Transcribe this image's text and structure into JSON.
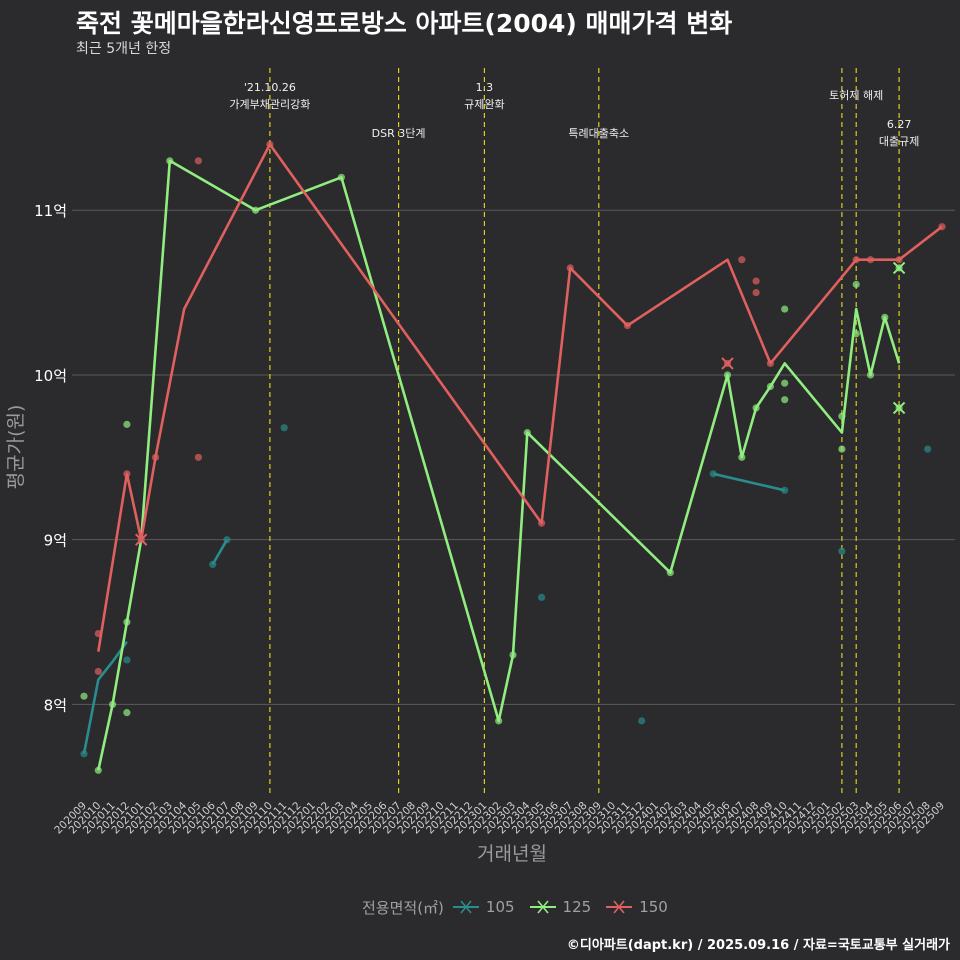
{
  "title": "죽전 꽃메마을한라신영프로방스 아파트(2004) 매매가격 변화",
  "subtitle": "최근 5개년 한정",
  "caption": "©디아파트(dapt.kr) / 2025.09.16 / 자료=국토교통부 실거래가",
  "legend": {
    "title": "전용면적(㎡)"
  },
  "chart_data": {
    "type": "line",
    "xlabel": "거래년월",
    "ylabel": "평균가(원)",
    "x": [
      "202009",
      "202010",
      "202011",
      "202012",
      "202101",
      "202102",
      "202103",
      "202104",
      "202105",
      "202106",
      "202107",
      "202108",
      "202109",
      "202110",
      "202111",
      "202112",
      "202201",
      "202202",
      "202203",
      "202204",
      "202205",
      "202206",
      "202207",
      "202208",
      "202209",
      "202210",
      "202211",
      "202212",
      "202301",
      "202302",
      "202303",
      "202304",
      "202305",
      "202306",
      "202307",
      "202308",
      "202309",
      "202310",
      "202311",
      "202312",
      "202401",
      "202402",
      "202403",
      "202404",
      "202405",
      "202406",
      "202407",
      "202408",
      "202409",
      "202410",
      "202411",
      "202412",
      "202501",
      "202502",
      "202503",
      "202504",
      "202505",
      "202506",
      "202507",
      "202508",
      "202509"
    ],
    "y_ticks": [
      {
        "value": 8,
        "label": "8억"
      },
      {
        "value": 9,
        "label": "9억"
      },
      {
        "value": 10,
        "label": "10억"
      },
      {
        "value": 11,
        "label": "11억"
      }
    ],
    "ylim": [
      7.45,
      11.9
    ],
    "grid": true,
    "legend_position": "bottom",
    "series": [
      {
        "name": "105",
        "color": "#2a8c8c",
        "line": [
          [
            "202009",
            7.7
          ],
          [
            "202010",
            8.15
          ],
          [
            "202011",
            8.26
          ],
          [
            "202012",
            8.38
          ],
          null,
          [
            "202106",
            8.85
          ],
          [
            "202107",
            9.0
          ],
          null,
          [
            "202405",
            9.4
          ],
          [
            "202410",
            9.3
          ]
        ],
        "points": [
          [
            "202009",
            7.7
          ],
          [
            "202012",
            8.27
          ],
          [
            "202106",
            8.85
          ],
          [
            "202107",
            9.0
          ],
          [
            "202111",
            9.68
          ],
          [
            "202305",
            8.65
          ],
          [
            "202312",
            7.9
          ],
          [
            "202405",
            9.4
          ],
          [
            "202410",
            9.3
          ],
          [
            "202502",
            8.93
          ],
          [
            "202508",
            9.55
          ]
        ],
        "cancelled": []
      },
      {
        "name": "125",
        "color": "#90ee80",
        "line": [
          [
            "202010",
            7.6
          ],
          [
            "202011",
            8.0
          ],
          [
            "202101",
            9.0
          ],
          [
            "202103",
            11.3
          ],
          [
            "202109",
            11.0
          ],
          [
            "202203",
            11.2
          ],
          [
            "202302",
            7.9
          ],
          [
            "202303",
            8.3
          ],
          [
            "202304",
            9.65
          ],
          [
            "202402",
            8.8
          ],
          [
            "202406",
            10.0
          ],
          [
            "202407",
            9.5
          ],
          [
            "202408",
            9.8
          ],
          [
            "202409",
            9.93
          ],
          [
            "202410",
            10.07
          ],
          [
            "202502",
            9.65
          ],
          [
            "202503",
            10.4
          ],
          [
            "202504",
            10.0
          ],
          [
            "202505",
            10.35
          ],
          [
            "202506",
            10.07
          ]
        ],
        "points": [
          [
            "202009",
            8.05
          ],
          [
            "202010",
            7.6
          ],
          [
            "202011",
            8.0
          ],
          [
            "202012",
            8.5
          ],
          [
            "202012",
            7.95
          ],
          [
            "202012",
            9.7
          ],
          [
            "202103",
            11.3
          ],
          [
            "202109",
            11.0
          ],
          [
            "202203",
            11.2
          ],
          [
            "202302",
            7.9
          ],
          [
            "202303",
            8.3
          ],
          [
            "202304",
            9.65
          ],
          [
            "202402",
            8.8
          ],
          [
            "202406",
            10.0
          ],
          [
            "202407",
            9.5
          ],
          [
            "202408",
            9.8
          ],
          [
            "202409",
            9.93
          ],
          [
            "202410",
            10.4
          ],
          [
            "202410",
            9.95
          ],
          [
            "202410",
            9.85
          ],
          [
            "202502",
            9.55
          ],
          [
            "202502",
            9.75
          ],
          [
            "202503",
            10.55
          ],
          [
            "202503",
            10.25
          ],
          [
            "202504",
            10.0
          ],
          [
            "202505",
            10.35
          ]
        ],
        "cancelled": [
          [
            "202506",
            10.65
          ],
          [
            "202506",
            9.8
          ]
        ]
      },
      {
        "name": "150",
        "color": "#e06060",
        "line": [
          [
            "202010",
            8.32
          ],
          [
            "202012",
            9.4
          ],
          [
            "202101",
            9.0
          ],
          [
            "202102",
            9.5
          ],
          [
            "202104",
            10.4
          ],
          [
            "202110",
            11.4
          ],
          [
            "202305",
            9.1
          ],
          [
            "202307",
            10.65
          ],
          [
            "202311",
            10.3
          ],
          [
            "202406",
            10.7
          ],
          [
            "202409",
            10.07
          ],
          [
            "202503",
            10.7
          ],
          [
            "202506",
            10.7
          ],
          [
            "202509",
            10.9
          ]
        ],
        "points": [
          [
            "202010",
            8.43
          ],
          [
            "202010",
            8.2
          ],
          [
            "202012",
            9.4
          ],
          [
            "202102",
            9.5
          ],
          [
            "202105",
            11.3
          ],
          [
            "202105",
            9.5
          ],
          [
            "202110",
            11.4
          ],
          [
            "202305",
            9.1
          ],
          [
            "202307",
            10.65
          ],
          [
            "202311",
            10.3
          ],
          [
            "202407",
            10.7
          ],
          [
            "202408",
            10.57
          ],
          [
            "202408",
            10.5
          ],
          [
            "202409",
            10.07
          ],
          [
            "202503",
            10.7
          ],
          [
            "202504",
            10.7
          ],
          [
            "202506",
            10.7
          ],
          [
            "202509",
            10.9
          ]
        ],
        "cancelled": [
          [
            "202101",
            9.0
          ],
          [
            "202406",
            10.07
          ]
        ]
      }
    ],
    "events": [
      {
        "x": "202110",
        "lines": [
          "'21.10.26",
          "가계부채관리강화"
        ],
        "row": 0
      },
      {
        "x": "202207",
        "lines": [
          "DSR 3단계"
        ],
        "row": 2
      },
      {
        "x": "202301",
        "lines": [
          "1.3",
          "규제완화"
        ],
        "row": 0
      },
      {
        "x": "202309",
        "lines": [
          "특례대출축소"
        ],
        "row": 2
      },
      {
        "x": "202502",
        "lines": [],
        "row": 1
      },
      {
        "x": "202503",
        "lines": [
          "토허제 해제"
        ],
        "row": 1
      },
      {
        "x": "202506",
        "lines": [
          "6.27",
          "대출규제"
        ],
        "row": 3
      }
    ]
  }
}
